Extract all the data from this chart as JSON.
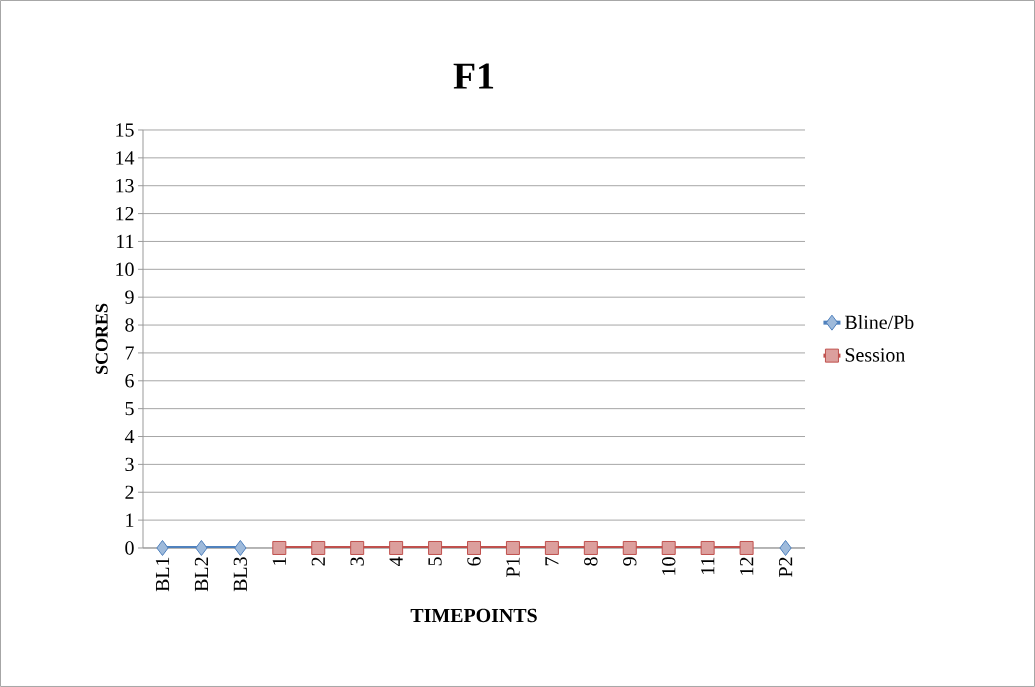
{
  "chart_data": {
    "type": "line",
    "title": "F1",
    "xlabel": "TIMEPOINTS",
    "ylabel": "SCORES",
    "categories": [
      "BL1",
      "BL2",
      "BL3",
      "1",
      "2",
      "3",
      "4",
      "5",
      "6",
      "P1",
      "7",
      "8",
      "9",
      "10",
      "11",
      "12",
      "P2"
    ],
    "series": [
      {
        "name": "Bline/Pb",
        "color": "#4f81bd",
        "marker": "diamond",
        "values": [
          0,
          0,
          0,
          null,
          null,
          null,
          null,
          null,
          null,
          null,
          null,
          null,
          null,
          null,
          null,
          null,
          0
        ]
      },
      {
        "name": "Session",
        "color": "#c0504d",
        "marker": "square",
        "values": [
          null,
          null,
          null,
          0,
          0,
          0,
          0,
          0,
          0,
          0,
          0,
          0,
          0,
          0,
          0,
          0,
          null
        ]
      }
    ],
    "ylim": [
      0,
      15
    ],
    "yticks": [
      0,
      1,
      2,
      3,
      4,
      5,
      6,
      7,
      8,
      9,
      10,
      11,
      12,
      13,
      14,
      15
    ],
    "grid": "y",
    "legend": "right"
  }
}
